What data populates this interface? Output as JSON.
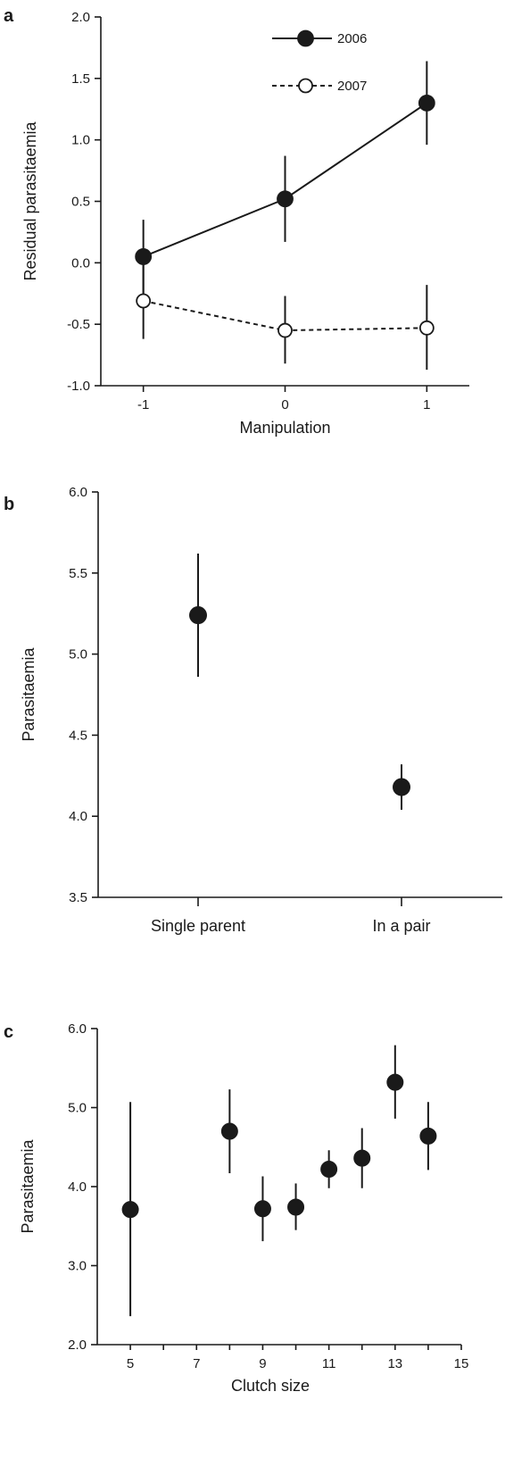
{
  "chart_data": [
    {
      "panel": "a",
      "type": "line",
      "xlabel": "Manipulation",
      "ylabel": "Residual parasitaemia",
      "x": [
        -1,
        0,
        1
      ],
      "xticks": [
        "-1",
        "0",
        "1"
      ],
      "xlim": [
        -1.3,
        1.3
      ],
      "ylim": [
        -1.0,
        2.0
      ],
      "yticks": [
        "-1.0",
        "-0.5",
        "0.0",
        "0.5",
        "1.0",
        "1.5",
        "2.0"
      ],
      "legend_position": "top-right",
      "series": [
        {
          "name": "2006",
          "values": [
            0.05,
            0.52,
            1.3
          ],
          "err_lo": [
            -0.25,
            0.17,
            0.96
          ],
          "err_hi": [
            0.35,
            0.87,
            1.64
          ],
          "marker": "filled",
          "line": "solid"
        },
        {
          "name": "2007",
          "values": [
            -0.31,
            -0.55,
            -0.53
          ],
          "err_lo": [
            -0.62,
            -0.82,
            -0.87
          ],
          "err_hi": [
            0.0,
            -0.27,
            -0.18
          ],
          "marker": "open",
          "line": "dashed"
        }
      ]
    },
    {
      "panel": "b",
      "type": "scatter",
      "xlabel": "",
      "ylabel": "Parasitaemia",
      "categories": [
        "Single parent",
        "In a pair"
      ],
      "values": [
        5.24,
        4.18
      ],
      "err_lo": [
        4.86,
        4.04
      ],
      "err_hi": [
        5.62,
        4.32
      ],
      "ylim": [
        3.5,
        6.0
      ],
      "yticks": [
        "3.5",
        "4.0",
        "4.5",
        "5.0",
        "5.5",
        "6.0"
      ]
    },
    {
      "panel": "c",
      "type": "scatter",
      "xlabel": "Clutch size",
      "ylabel": "Parasitaemia",
      "x": [
        5,
        8,
        9,
        10,
        11,
        12,
        13,
        14
      ],
      "values": [
        3.71,
        4.7,
        3.72,
        3.74,
        4.22,
        4.36,
        5.32,
        4.64
      ],
      "err_lo": [
        2.36,
        4.17,
        3.31,
        3.45,
        3.98,
        3.98,
        4.86,
        4.21
      ],
      "err_hi": [
        5.07,
        5.23,
        4.13,
        4.04,
        4.46,
        4.74,
        5.79,
        5.07
      ],
      "xlim": [
        4,
        15
      ],
      "xticks": [
        "5",
        "7",
        "9",
        "11",
        "13",
        "15"
      ],
      "ylim": [
        2.0,
        6.0
      ],
      "yticks": [
        "2.0",
        "3.0",
        "4.0",
        "5.0",
        "6.0"
      ]
    }
  ]
}
